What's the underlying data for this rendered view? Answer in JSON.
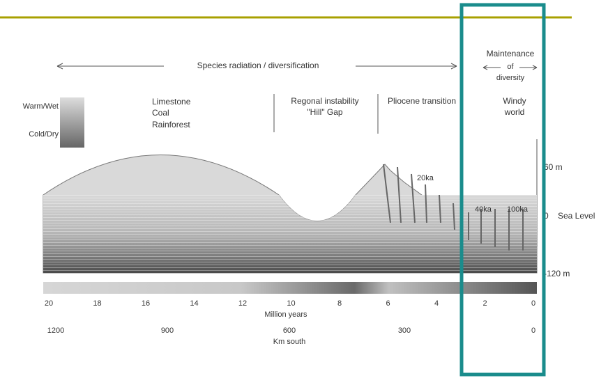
{
  "top_arrow": "Species radiation / diversification",
  "maintenance": [
    "Maintenance",
    "of",
    "diversity"
  ],
  "climate": {
    "warm": "Warm/Wet",
    "cold": "Cold/Dry"
  },
  "periods": {
    "first": [
      "Limestone",
      "Coal",
      "Rainforest"
    ],
    "second": [
      "Regonal instability",
      "\"Hill\" Gap"
    ],
    "third": [
      "Pliocene transition"
    ],
    "fourth": [
      "Windy",
      "world"
    ]
  },
  "levels": {
    "top": "60 m",
    "zero": "0",
    "sea": "Sea Level",
    "bottom": "-120 m"
  },
  "cycles": [
    "20ka",
    "40ka",
    "100ka"
  ],
  "time_axis": {
    "ticks": [
      "20",
      "18",
      "16",
      "14",
      "12",
      "10",
      "8",
      "6",
      "4",
      "2",
      "0"
    ],
    "label": "Million years"
  },
  "distance_axis": {
    "ticks": [
      "1200",
      "900",
      "600",
      "300",
      "0"
    ],
    "label": "Km south"
  }
}
